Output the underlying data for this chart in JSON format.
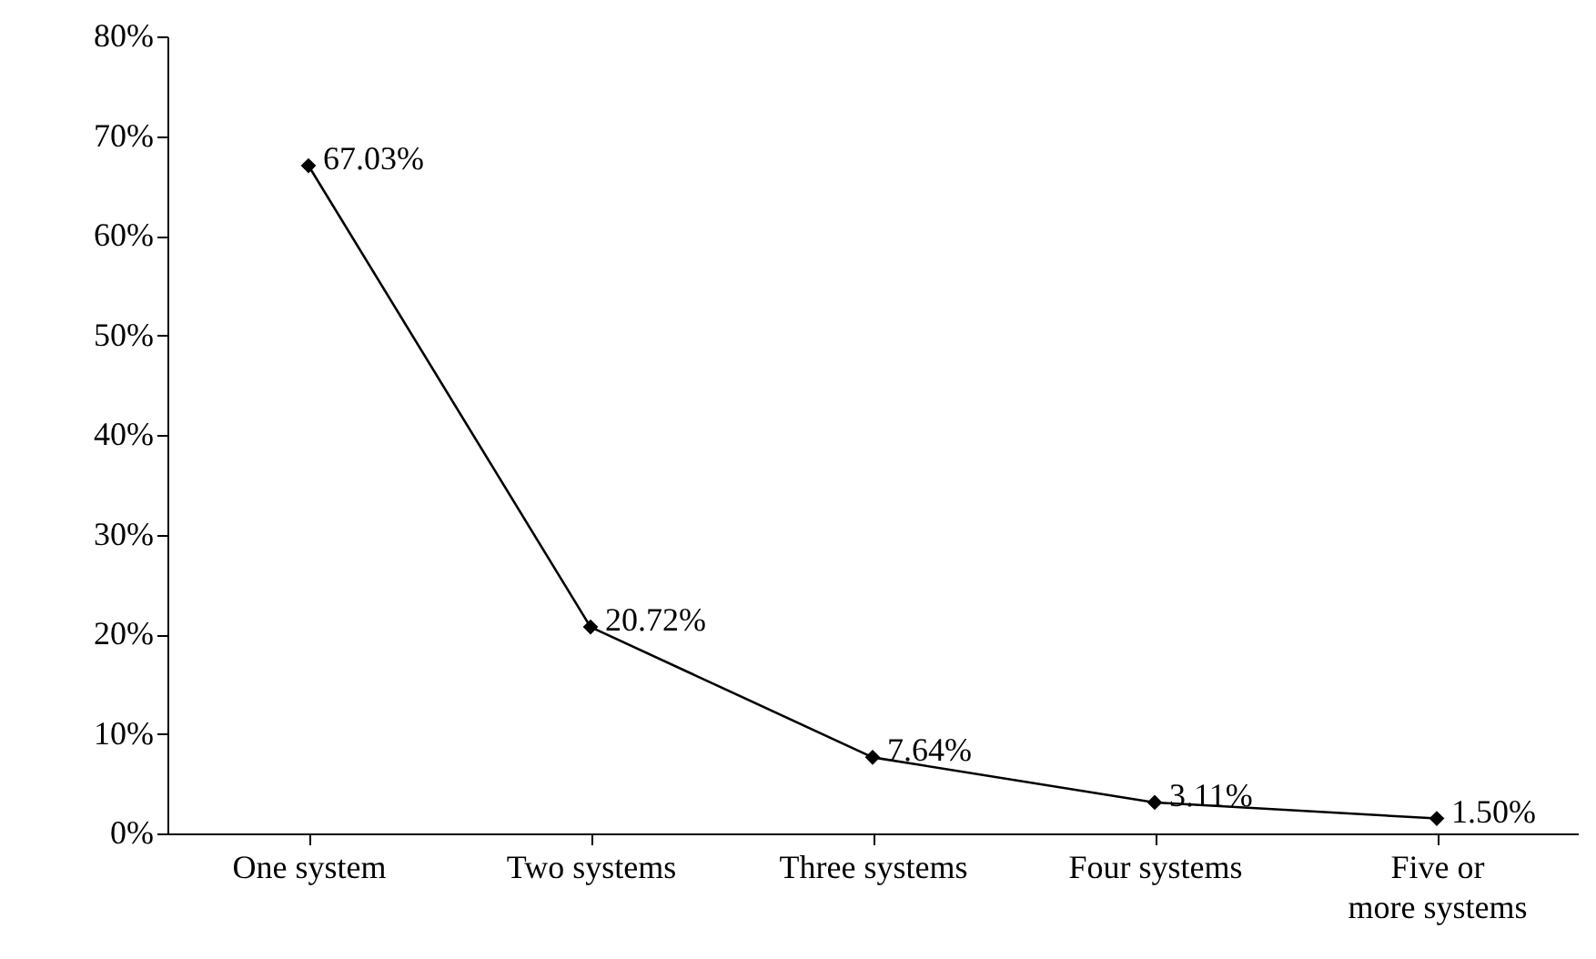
{
  "chart_data": {
    "type": "line",
    "categories": [
      "One system",
      "Two systems",
      "Three systems",
      "Four systems",
      "Five or more systems"
    ],
    "series": [
      {
        "color": "#000000",
        "values": [
          67.03,
          20.72,
          7.64,
          3.11,
          1.5
        ],
        "value_labels": [
          "67.03%",
          "20.72%",
          "7.64%",
          "3.11%",
          "1.50%"
        ]
      }
    ],
    "ylim": [
      0,
      80
    ],
    "yticks": [
      {
        "value": 0,
        "label": "0%"
      },
      {
        "value": 10,
        "label": "10%"
      },
      {
        "value": 20,
        "label": "20%"
      },
      {
        "value": 30,
        "label": "30%"
      },
      {
        "value": 40,
        "label": "40%"
      },
      {
        "value": 50,
        "label": "50%"
      },
      {
        "value": 60,
        "label": "60%"
      },
      {
        "value": 70,
        "label": "70%"
      },
      {
        "value": 80,
        "label": "80%"
      }
    ],
    "grid": false,
    "marker": "diamond",
    "line_style": "solid"
  }
}
